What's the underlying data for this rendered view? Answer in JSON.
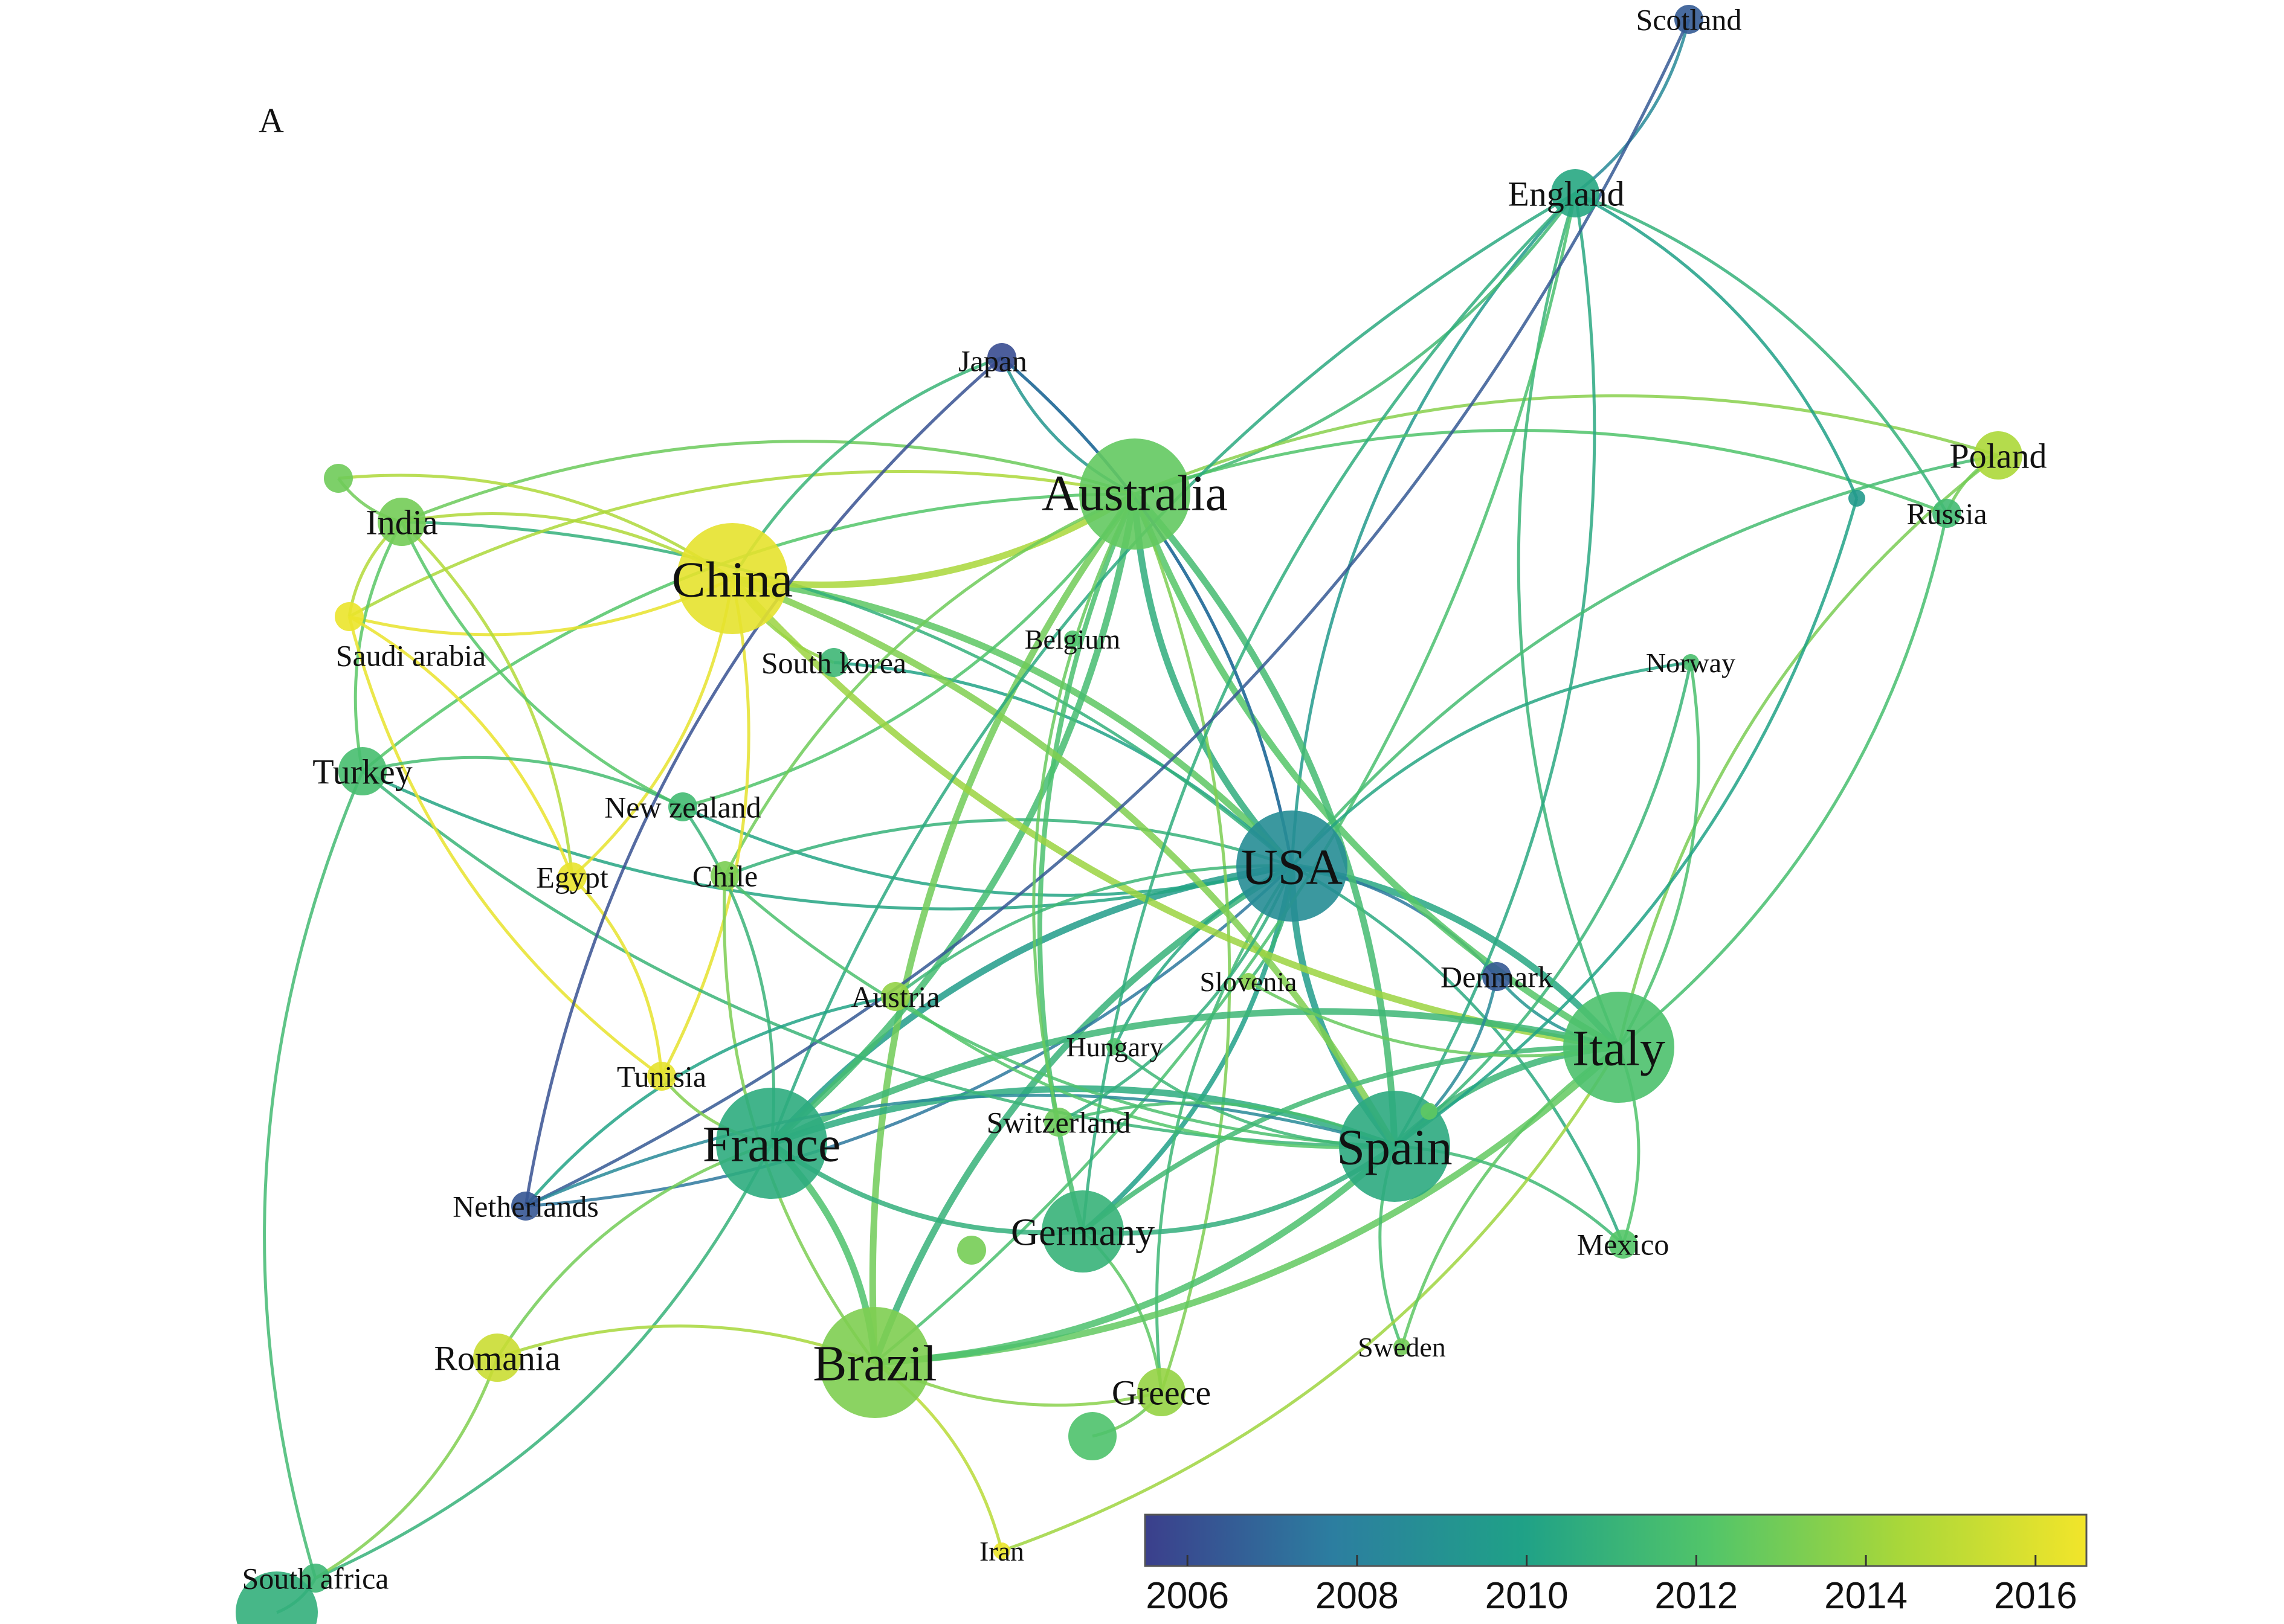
{
  "panel_label": "A",
  "colorbar": {
    "ticks": [
      "2006",
      "2008",
      "2010",
      "2012",
      "2014",
      "2016"
    ],
    "range": [
      2005.5,
      2016.6
    ],
    "colors": [
      "#3b3f8c",
      "#2c7ea0",
      "#1fa187",
      "#52c569",
      "#a8d73a",
      "#f2e52a"
    ]
  },
  "nodes": [
    {
      "id": "scotland",
      "label": "Scotland",
      "year": 2006.5,
      "size": "xs"
    },
    {
      "id": "england",
      "label": "England",
      "year": 2010.3,
      "size": "sm"
    },
    {
      "id": "japan",
      "label": "Japan",
      "year": 2006.0,
      "size": "xs"
    },
    {
      "id": "australia",
      "label": "Australia",
      "year": 2012.6,
      "size": "lg"
    },
    {
      "id": "poland",
      "label": "Poland",
      "year": 2014.5,
      "size": "sm"
    },
    {
      "id": "russia",
      "label": "Russia",
      "year": 2011.5,
      "size": "xs"
    },
    {
      "id": "india",
      "label": "India",
      "year": 2013.0,
      "size": "sm"
    },
    {
      "id": "china",
      "label": "China",
      "year": 2016.2,
      "size": "lg"
    },
    {
      "id": "saudi",
      "label": "Saudi arabia",
      "year": 2016.4,
      "size": "xs"
    },
    {
      "id": "southkorea",
      "label": "South korea",
      "year": 2011.3,
      "size": "xs"
    },
    {
      "id": "belgium",
      "label": "Belgium",
      "year": 2012.0,
      "size": "xxs"
    },
    {
      "id": "norway",
      "label": "Norway",
      "year": 2011.8,
      "size": "xxs"
    },
    {
      "id": "turkey",
      "label": "Turkey",
      "year": 2011.7,
      "size": "sm"
    },
    {
      "id": "newzealand",
      "label": "New zealand",
      "year": 2011.5,
      "size": "xs"
    },
    {
      "id": "usa",
      "label": "USA",
      "year": 2008.7,
      "size": "lg"
    },
    {
      "id": "egypt",
      "label": "Egypt",
      "year": 2016.3,
      "size": "xs"
    },
    {
      "id": "chile",
      "label": "Chile",
      "year": 2013.2,
      "size": "xs"
    },
    {
      "id": "austria",
      "label": "Austria",
      "year": 2013.8,
      "size": "xs"
    },
    {
      "id": "slovenia",
      "label": "Slovenia",
      "year": 2013.5,
      "size": "xxs"
    },
    {
      "id": "denmark",
      "label": "Denmark",
      "year": 2006.4,
      "size": "xs"
    },
    {
      "id": "hungary",
      "label": "Hungary",
      "year": 2012.0,
      "size": "xxs"
    },
    {
      "id": "italy",
      "label": "Italy",
      "year": 2011.9,
      "size": "lg"
    },
    {
      "id": "tunisia",
      "label": "Tunisia",
      "year": 2016.2,
      "size": "xs"
    },
    {
      "id": "france",
      "label": "France",
      "year": 2010.6,
      "size": "lg"
    },
    {
      "id": "switzerland",
      "label": "Switzerland",
      "year": 2012.8,
      "size": "xs"
    },
    {
      "id": "spain",
      "label": "Spain",
      "year": 2010.5,
      "size": "lg"
    },
    {
      "id": "netherlands",
      "label": "Netherlands",
      "year": 2006.3,
      "size": "xs"
    },
    {
      "id": "germany",
      "label": "Germany",
      "year": 2011.0,
      "size": "md"
    },
    {
      "id": "mexico",
      "label": "Mexico",
      "year": 2012.2,
      "size": "xs"
    },
    {
      "id": "sweden",
      "label": "Sweden",
      "year": 2013.0,
      "size": "xxs"
    },
    {
      "id": "romania",
      "label": "Romania",
      "year": 2015.4,
      "size": "sm"
    },
    {
      "id": "brazil",
      "label": "Brazil",
      "year": 2013.3,
      "size": "lg"
    },
    {
      "id": "greece",
      "label": "Greece",
      "year": 2013.9,
      "size": "sm"
    },
    {
      "id": "iran",
      "label": "Iran",
      "year": 2016.4,
      "size": "xxs"
    },
    {
      "id": "southafrica",
      "label": "South africa",
      "year": 2011.3,
      "size": "xs"
    },
    {
      "id": "n_unlabeled_1",
      "label": "",
      "year": 2012.9,
      "size": "xs"
    },
    {
      "id": "n_unlabeled_2",
      "label": "",
      "year": 2010.8,
      "size": "md"
    },
    {
      "id": "n_unlabeled_3",
      "label": "",
      "year": 2013.1,
      "size": "xs"
    },
    {
      "id": "n_unlabeled_4",
      "label": "",
      "year": 2012.0,
      "size": "sm"
    },
    {
      "id": "n_unlabeled_5",
      "label": "",
      "year": 2009.5,
      "size": "xxs"
    },
    {
      "id": "n_unlabeled_6",
      "label": "",
      "year": 2012.5,
      "size": "xxs"
    }
  ],
  "edges": [
    [
      "usa",
      "australia"
    ],
    [
      "usa",
      "china"
    ],
    [
      "usa",
      "italy"
    ],
    [
      "usa",
      "spain"
    ],
    [
      "usa",
      "england"
    ],
    [
      "usa",
      "france"
    ],
    [
      "usa",
      "germany"
    ],
    [
      "usa",
      "brazil"
    ],
    [
      "usa",
      "denmark"
    ],
    [
      "usa",
      "japan"
    ],
    [
      "usa",
      "netherlands"
    ],
    [
      "usa",
      "southkorea"
    ],
    [
      "usa",
      "turkey"
    ],
    [
      "usa",
      "india"
    ],
    [
      "usa",
      "mexico"
    ],
    [
      "usa",
      "greece"
    ],
    [
      "usa",
      "newzealand"
    ],
    [
      "usa",
      "chile"
    ],
    [
      "usa",
      "slovenia"
    ],
    [
      "usa",
      "hungary"
    ],
    [
      "australia",
      "china"
    ],
    [
      "australia",
      "england"
    ],
    [
      "australia",
      "poland"
    ],
    [
      "australia",
      "italy"
    ],
    [
      "australia",
      "spain"
    ],
    [
      "australia",
      "brazil"
    ],
    [
      "australia",
      "france"
    ],
    [
      "australia",
      "india"
    ],
    [
      "australia",
      "greece"
    ],
    [
      "australia",
      "germany"
    ],
    [
      "australia",
      "newzealand"
    ],
    [
      "australia",
      "chile"
    ],
    [
      "australia",
      "japan"
    ],
    [
      "australia",
      "turkey"
    ],
    [
      "australia",
      "russia"
    ],
    [
      "australia",
      "saudi"
    ],
    [
      "china",
      "saudi"
    ],
    [
      "china",
      "india"
    ],
    [
      "china",
      "egypt"
    ],
    [
      "china",
      "southkorea"
    ],
    [
      "china",
      "japan"
    ],
    [
      "china",
      "n_unlabeled_1"
    ],
    [
      "china",
      "spain"
    ],
    [
      "china",
      "italy"
    ],
    [
      "china",
      "tunisia"
    ],
    [
      "england",
      "italy"
    ],
    [
      "england",
      "spain"
    ],
    [
      "england",
      "scotland"
    ],
    [
      "england",
      "brazil"
    ],
    [
      "england",
      "france"
    ],
    [
      "england",
      "russia"
    ],
    [
      "england",
      "germany"
    ],
    [
      "scotland",
      "netherlands"
    ],
    [
      "italy",
      "spain"
    ],
    [
      "italy",
      "brazil"
    ],
    [
      "italy",
      "france"
    ],
    [
      "italy",
      "poland"
    ],
    [
      "italy",
      "russia"
    ],
    [
      "italy",
      "mexico"
    ],
    [
      "italy",
      "norway"
    ],
    [
      "italy",
      "denmark"
    ],
    [
      "italy",
      "germany"
    ],
    [
      "spain",
      "brazil"
    ],
    [
      "spain",
      "france"
    ],
    [
      "spain",
      "mexico"
    ],
    [
      "spain",
      "sweden"
    ],
    [
      "spain",
      "germany"
    ],
    [
      "spain",
      "denmark"
    ],
    [
      "spain",
      "chile"
    ],
    [
      "spain",
      "netherlands"
    ],
    [
      "spain",
      "turkey"
    ],
    [
      "france",
      "germany"
    ],
    [
      "france",
      "brazil"
    ],
    [
      "france",
      "romania"
    ],
    [
      "france",
      "southafrica"
    ],
    [
      "france",
      "newzealand"
    ],
    [
      "france",
      "tunisia"
    ],
    [
      "brazil",
      "greece"
    ],
    [
      "brazil",
      "iran"
    ],
    [
      "brazil",
      "romania"
    ],
    [
      "brazil",
      "chile"
    ],
    [
      "greece",
      "germany"
    ],
    [
      "greece",
      "n_unlabeled_4"
    ],
    [
      "india",
      "saudi"
    ],
    [
      "india",
      "egypt"
    ],
    [
      "india",
      "turkey"
    ],
    [
      "india",
      "n_unlabeled_1"
    ],
    [
      "india",
      "newzealand"
    ],
    [
      "saudi",
      "egypt"
    ],
    [
      "saudi",
      "tunisia"
    ],
    [
      "egypt",
      "tunisia"
    ],
    [
      "turkey",
      "southafrica"
    ],
    [
      "turkey",
      "newzealand"
    ],
    [
      "southafrica",
      "romania"
    ],
    [
      "southafrica",
      "n_unlabeled_2"
    ],
    [
      "iran",
      "italy"
    ],
    [
      "netherlands",
      "austria"
    ],
    [
      "japan",
      "netherlands"
    ],
    [
      "japan",
      "usa"
    ],
    [
      "poland",
      "usa"
    ],
    [
      "russia",
      "poland"
    ],
    [
      "norway",
      "usa"
    ],
    [
      "norway",
      "spain"
    ],
    [
      "n_unlabeled_5",
      "england"
    ],
    [
      "n_unlabeled_5",
      "spain"
    ],
    [
      "austria",
      "spain"
    ],
    [
      "austria",
      "usa"
    ],
    [
      "hungary",
      "spain"
    ],
    [
      "switzerland",
      "spain"
    ],
    [
      "switzerland",
      "usa"
    ],
    [
      "switzerland",
      "australia"
    ],
    [
      "slovenia",
      "italy"
    ],
    [
      "sweden",
      "italy"
    ]
  ]
}
